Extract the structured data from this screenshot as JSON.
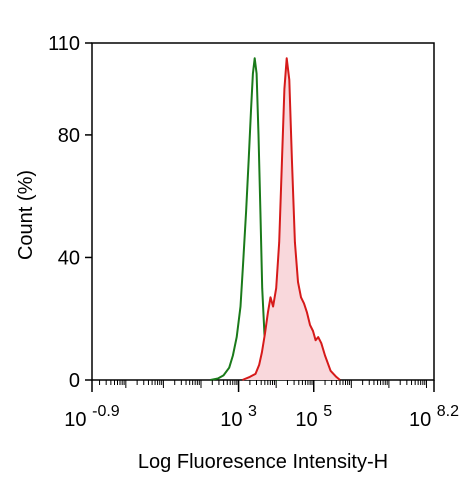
{
  "chart_data": {
    "type": "area",
    "title": "",
    "xlabel": "Log Fluoresence Intensity-H",
    "ylabel": "Count (%)",
    "x_scale": "log10",
    "xlim": [
      -0.9,
      8.2
    ],
    "ylim": [
      0,
      110
    ],
    "x_ticks": [
      {
        "value": -0.9,
        "base": "10",
        "exp": "-0.9"
      },
      {
        "value": 3,
        "base": "10",
        "exp": "3"
      },
      {
        "value": 5,
        "base": "10",
        "exp": "5"
      },
      {
        "value": 8.2,
        "base": "10",
        "exp": "8.2"
      }
    ],
    "y_ticks": [
      0,
      40,
      80,
      110
    ],
    "grid": false,
    "legend": "none",
    "series": [
      {
        "color": "#1a7a1a",
        "fill": "none",
        "x": [
          2.25,
          2.45,
          2.6,
          2.75,
          2.85,
          2.95,
          3.05,
          3.12,
          3.2,
          3.27,
          3.33,
          3.38,
          3.43,
          3.48,
          3.53,
          3.58,
          3.63,
          3.7,
          3.78,
          3.9,
          4.05
        ],
        "y": [
          0,
          0.5,
          1.5,
          4,
          8,
          14,
          24,
          38,
          55,
          72,
          88,
          100,
          105,
          100,
          80,
          55,
          30,
          12,
          4,
          1,
          0
        ]
      },
      {
        "color": "#d61a1a",
        "fill": "#f9d8dc",
        "x": [
          3.1,
          3.3,
          3.45,
          3.55,
          3.62,
          3.7,
          3.78,
          3.85,
          3.92,
          4.0,
          4.08,
          4.15,
          4.22,
          4.28,
          4.35,
          4.42,
          4.5,
          4.58,
          4.66,
          4.74,
          4.82,
          4.9,
          4.98,
          5.05,
          5.12,
          5.2,
          5.3,
          5.45,
          5.6,
          5.7
        ],
        "y": [
          0,
          1,
          2,
          5,
          9,
          15,
          22,
          27,
          24,
          30,
          45,
          70,
          95,
          105,
          98,
          72,
          45,
          32,
          27,
          25,
          22,
          18,
          16,
          13,
          14,
          12,
          8,
          3,
          1,
          0
        ]
      }
    ]
  }
}
